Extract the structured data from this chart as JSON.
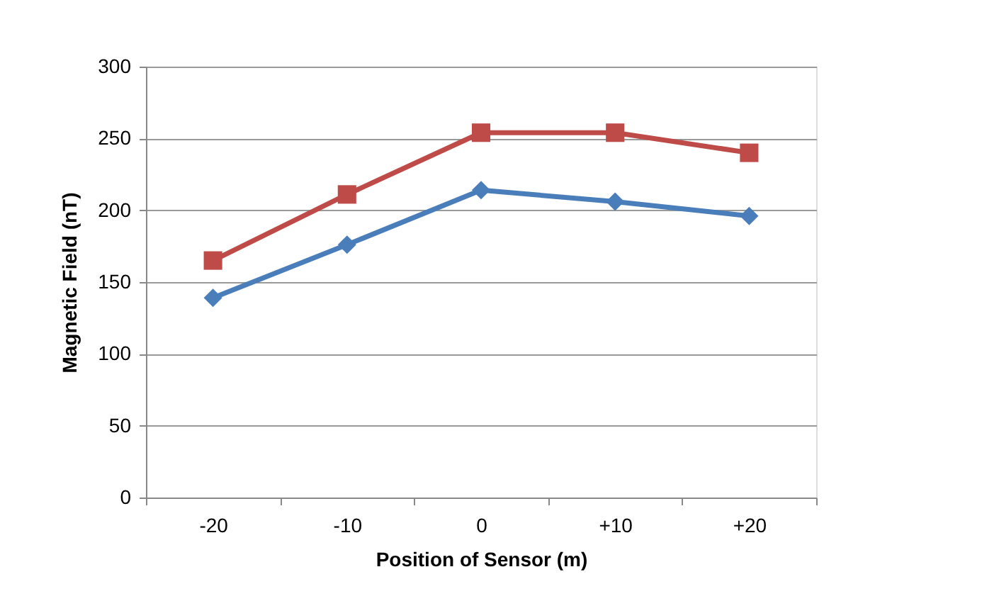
{
  "chart_data": {
    "type": "line",
    "xlabel": "Position of Sensor (m)",
    "ylabel": "Magnetic Field (nT)",
    "categories": [
      "-20",
      "-10",
      "0",
      "+10",
      "+20"
    ],
    "series": [
      {
        "color": "#4a7ebb",
        "marker": "diamond",
        "values": [
          139,
          176,
          214,
          206,
          196
        ]
      },
      {
        "color": "#be4b48",
        "marker": "square",
        "values": [
          165,
          211,
          254,
          254,
          240
        ]
      }
    ],
    "ylim": [
      0,
      300
    ],
    "yticks": [
      0,
      50,
      100,
      150,
      200,
      250,
      300
    ],
    "grid": "y",
    "legend": false
  }
}
